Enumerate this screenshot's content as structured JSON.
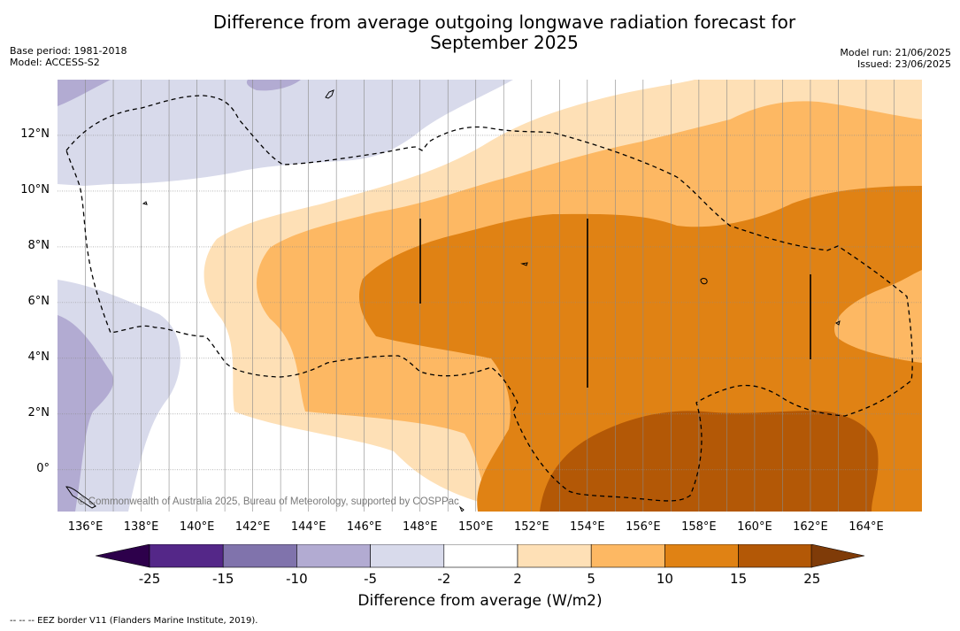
{
  "title_line1": "Difference from average outgoing longwave radiation forecast for",
  "title_line2": "September 2025",
  "base_period": "Base period: 1981-2018",
  "model": "Model: ACCESS-S2",
  "model_run": "Model run: 21/06/2025",
  "issued": "Issued: 23/06/2025",
  "copyright": "© Commonwealth of Australia 2025, Bureau of Meteorology, supported by COSPPac",
  "legend_footer": "--  --  -- EEZ border V11 (Flanders Marine Institute, 2019).",
  "colorbar_label": "Difference from average (W/m2)",
  "colorbar_ticks": [
    "-25",
    "-15",
    "-10",
    "-5",
    "-2",
    "2",
    "5",
    "10",
    "15",
    "25"
  ],
  "colorbar_colors": [
    "#542788",
    "#8073ac",
    "#b2abd2",
    "#d8daeb",
    "#ffffff",
    "#fee0b6",
    "#fdb863",
    "#e08214",
    "#b35806"
  ],
  "colorbar_extend_colors": {
    "low": "#2d004b",
    "high": "#7f3b08"
  },
  "longitude_labels": [
    "136°E",
    "138°E",
    "140°E",
    "142°E",
    "144°E",
    "146°E",
    "148°E",
    "150°E",
    "152°E",
    "154°E",
    "156°E",
    "158°E",
    "160°E",
    "162°E",
    "164°E"
  ],
  "latitude_labels": [
    "12°N",
    "10°N",
    "8°N",
    "6°N",
    "4°N",
    "2°N",
    "0°"
  ],
  "map_extent": {
    "lon_min": 135,
    "lon_max": 166,
    "lat_min": -1.5,
    "lat_max": 14
  }
}
